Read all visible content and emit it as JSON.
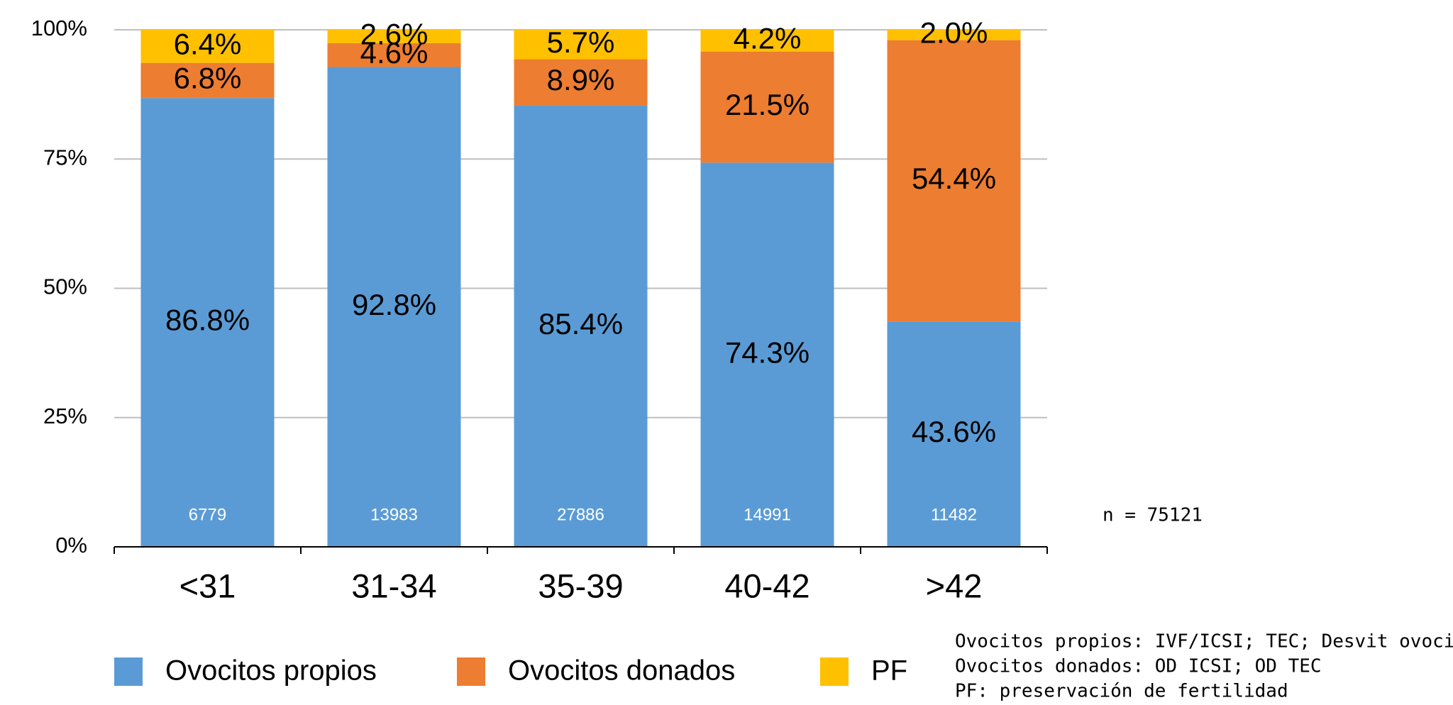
{
  "chart_data": {
    "type": "stacked_bar",
    "categories": [
      "<31",
      "31-34",
      "35-39",
      "40-42",
      ">42"
    ],
    "series": [
      {
        "name": "Ovocitos propios",
        "color": "#5b9bd5",
        "values": [
          86.8,
          92.8,
          85.4,
          74.3,
          43.6
        ],
        "value_labels": [
          "86.8%",
          "92.8%",
          "85.4%",
          "74.3%",
          "43.6%"
        ]
      },
      {
        "name": "Ovocitos donados",
        "color": "#ed7d31",
        "values": [
          6.8,
          4.6,
          8.9,
          21.5,
          54.4
        ],
        "value_labels": [
          "6.8%",
          "4.6%",
          "8.9%",
          "21.5%",
          "54.4%"
        ]
      },
      {
        "name": "PF",
        "color": "#ffc000",
        "values": [
          6.4,
          2.6,
          5.7,
          4.2,
          2.0
        ],
        "value_labels": [
          "6.4%",
          "2.6%",
          "5.7%",
          "4.2%",
          "2.0%"
        ]
      }
    ],
    "counts": [
      6779,
      13983,
      27886,
      14991,
      11482
    ],
    "total_label": "n = 75121",
    "notes": [
      "Ovocitos propios: IVF/ICSI; TEC; Desvit ovocitos",
      "Ovocitos donados: OD ICSI; OD TEC",
      "PF: preservación de fertilidad"
    ],
    "ylim": [
      0,
      100
    ],
    "yticks": [
      {
        "value": 0,
        "label": "0%"
      },
      {
        "value": 25,
        "label": "25%"
      },
      {
        "value": 50,
        "label": "50%"
      },
      {
        "value": 75,
        "label": "75%"
      },
      {
        "value": 100,
        "label": "100%"
      }
    ],
    "grid": true,
    "legend": "bottom"
  }
}
